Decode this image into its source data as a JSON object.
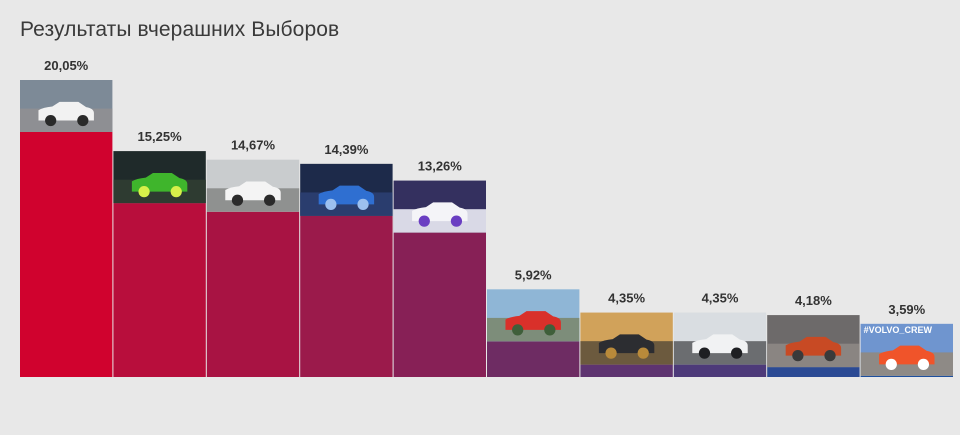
{
  "title": "Результаты вчерашних Выборов",
  "chart_data": {
    "type": "bar",
    "title": "Результаты вчерашних Выборов",
    "value_labels": [
      "20,05%",
      "15,25%",
      "14,67%",
      "14,39%",
      "13,26%",
      "5,92%",
      "4,35%",
      "4,35%",
      "4,18%",
      "3,59%"
    ],
    "values": [
      20.05,
      15.25,
      14.67,
      14.39,
      13.26,
      5.92,
      4.35,
      4.35,
      4.18,
      3.59
    ],
    "bar_images": [
      "white-hatchback-photo",
      "green-bmw-photo",
      "white-race-livery-car-photo",
      "blue-car-engine-photo",
      "white-purple-car-photo",
      "red-car-parking-photo",
      "dark-sedan-autumn-photo",
      "white-car-closeup-photo",
      "orange-suv-photo",
      "orange-volvo-photo"
    ],
    "image_captions": [
      "",
      "",
      "",
      "",
      "",
      "",
      "",
      "",
      "",
      "#VOLVO_CREW"
    ],
    "bar_colors": [
      "#d0022e",
      "#b80e3c",
      "#a81343",
      "#9b1a4b",
      "#872056",
      "#6e2c63",
      "#5e3470",
      "#4d3a79",
      "#2b4a94",
      "#1e4f9e"
    ],
    "xlabel": "",
    "ylabel": ""
  }
}
